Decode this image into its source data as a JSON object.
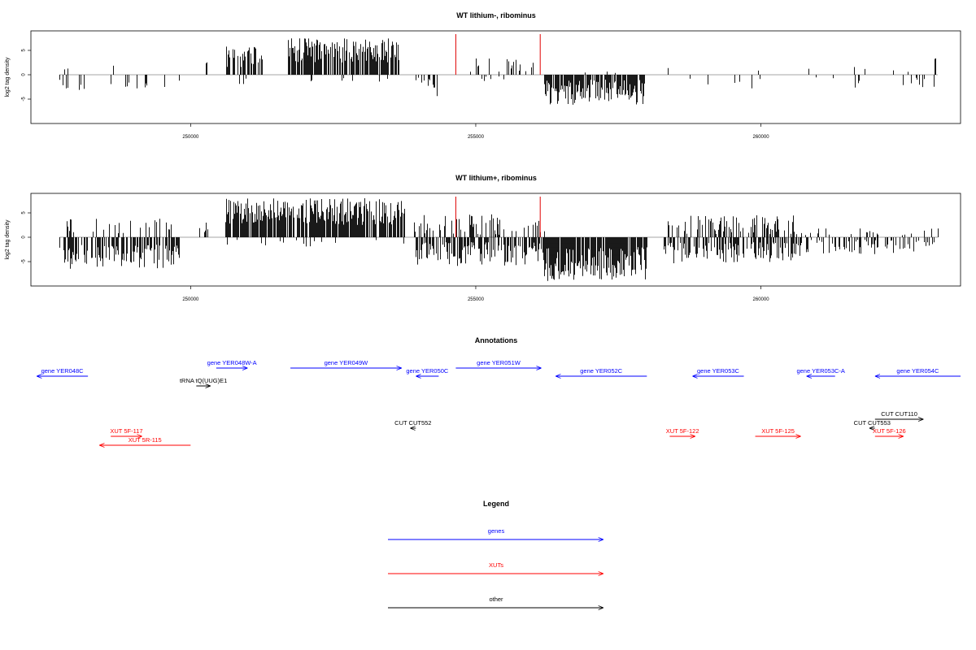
{
  "chart_data": [
    {
      "type": "bar",
      "title": "WT lithium-, ribominus",
      "xlabel": "",
      "ylabel": "log2 tag density",
      "xlim": [
        247200,
        263500
      ],
      "ylim": [
        -10,
        9
      ],
      "x_ticks": [
        250000,
        255000,
        260000
      ],
      "x_tick_labels": [
        "250000",
        "255000",
        "260000"
      ],
      "y_ticks": [
        -5,
        0,
        5
      ],
      "y_tick_labels": [
        "-5",
        "0",
        "5"
      ],
      "markers": {
        "color": "#e00000",
        "x": [
          254650,
          256130
        ]
      },
      "segments": [
        {
          "x_start": 247700,
          "x_end": 249800,
          "sign": -1,
          "min": 1.0,
          "max": 3.5,
          "density": 0.12
        },
        {
          "x_start": 247700,
          "x_end": 249800,
          "sign": 1,
          "min": 0.8,
          "max": 2.4,
          "density": 0.05
        },
        {
          "x_start": 250250,
          "x_end": 250300,
          "sign": 1,
          "min": 2.0,
          "max": 3.0,
          "density": 0.6
        },
        {
          "x_start": 250620,
          "x_end": 251250,
          "sign": 1,
          "min": 1.5,
          "max": 5.8,
          "density": 0.55
        },
        {
          "x_start": 250620,
          "x_end": 251250,
          "sign": -1,
          "min": 0.5,
          "max": 2.0,
          "density": 0.06
        },
        {
          "x_start": 251700,
          "x_end": 253650,
          "sign": 1,
          "min": 2.5,
          "max": 7.5,
          "density": 0.8
        },
        {
          "x_start": 251700,
          "x_end": 253650,
          "sign": -1,
          "min": 0.5,
          "max": 1.8,
          "density": 0.05
        },
        {
          "x_start": 253950,
          "x_end": 254350,
          "sign": -1,
          "min": 0.5,
          "max": 4.5,
          "density": 0.35
        },
        {
          "x_start": 254700,
          "x_end": 256000,
          "sign": 1,
          "min": 0.5,
          "max": 3.5,
          "density": 0.18
        },
        {
          "x_start": 254700,
          "x_end": 256000,
          "sign": -1,
          "min": 0.3,
          "max": 1.5,
          "density": 0.05
        },
        {
          "x_start": 256200,
          "x_end": 257950,
          "sign": -1,
          "min": 1.0,
          "max": 6.2,
          "density": 0.8
        },
        {
          "x_start": 256200,
          "x_end": 257950,
          "sign": 1,
          "min": 0.3,
          "max": 1.0,
          "density": 0.04
        },
        {
          "x_start": 258300,
          "x_end": 263100,
          "sign": -1,
          "min": 0.5,
          "max": 2.8,
          "density": 0.06
        },
        {
          "x_start": 258300,
          "x_end": 263100,
          "sign": 1,
          "min": 0.5,
          "max": 2.0,
          "density": 0.03
        },
        {
          "x_start": 263050,
          "x_end": 263060,
          "sign": 1,
          "min": 3.2,
          "max": 3.4,
          "density": 1.0
        }
      ]
    },
    {
      "type": "bar",
      "title": "WT lithium+, ribominus",
      "xlabel": "",
      "ylabel": "log2 tag density",
      "xlim": [
        247200,
        263500
      ],
      "ylim": [
        -10,
        9
      ],
      "x_ticks": [
        250000,
        255000,
        260000
      ],
      "x_tick_labels": [
        "250000",
        "255000",
        "260000"
      ],
      "y_ticks": [
        -5,
        0,
        5
      ],
      "y_tick_labels": [
        "-5",
        "0",
        "5"
      ],
      "markers": {
        "color": "#e00000",
        "x": [
          254650,
          256130
        ]
      },
      "segments": [
        {
          "x_start": 247700,
          "x_end": 249800,
          "sign": -1,
          "min": 1.5,
          "max": 6.5,
          "density": 0.6
        },
        {
          "x_start": 247700,
          "x_end": 249800,
          "sign": 1,
          "min": 0.8,
          "max": 4.0,
          "density": 0.2
        },
        {
          "x_start": 250150,
          "x_end": 250300,
          "sign": 1,
          "min": 0.8,
          "max": 3.2,
          "density": 0.4
        },
        {
          "x_start": 250600,
          "x_end": 253750,
          "sign": 1,
          "min": 2.5,
          "max": 8.0,
          "density": 0.85
        },
        {
          "x_start": 250600,
          "x_end": 253750,
          "sign": -1,
          "min": 0.5,
          "max": 2.0,
          "density": 0.08
        },
        {
          "x_start": 253900,
          "x_end": 256200,
          "sign": -1,
          "min": 1.0,
          "max": 6.0,
          "density": 0.65
        },
        {
          "x_start": 253900,
          "x_end": 256200,
          "sign": 1,
          "min": 0.5,
          "max": 4.8,
          "density": 0.3
        },
        {
          "x_start": 256200,
          "x_end": 258000,
          "sign": -1,
          "min": 2.0,
          "max": 9.0,
          "density": 0.9
        },
        {
          "x_start": 258300,
          "x_end": 260700,
          "sign": -1,
          "min": 1.0,
          "max": 5.5,
          "density": 0.55
        },
        {
          "x_start": 258300,
          "x_end": 260700,
          "sign": 1,
          "min": 0.5,
          "max": 4.5,
          "density": 0.4
        },
        {
          "x_start": 260700,
          "x_end": 263100,
          "sign": -1,
          "min": 0.5,
          "max": 3.5,
          "density": 0.35
        },
        {
          "x_start": 260700,
          "x_end": 263100,
          "sign": 1,
          "min": 0.4,
          "max": 1.8,
          "density": 0.12
        }
      ]
    }
  ],
  "annotations": {
    "title": "Annotations",
    "features": [
      {
        "label": "gene YER048C",
        "class": "gene",
        "x_start": 247300,
        "x_end": 248200,
        "strand": "-",
        "row": 1
      },
      {
        "label": "gene YER048W-A",
        "class": "gene",
        "x_start": 250450,
        "x_end": 251000,
        "strand": "+",
        "row": 0
      },
      {
        "label": "gene YER049W",
        "class": "gene",
        "x_start": 251750,
        "x_end": 253700,
        "strand": "+",
        "row": 0
      },
      {
        "label": "gene YER050C",
        "class": "gene",
        "x_start": 253950,
        "x_end": 254350,
        "strand": "-",
        "row": 1
      },
      {
        "label": "gene YER051W",
        "class": "gene",
        "x_start": 254650,
        "x_end": 256150,
        "strand": "+",
        "row": 0
      },
      {
        "label": "gene YER052C",
        "class": "gene",
        "x_start": 256400,
        "x_end": 258000,
        "strand": "-",
        "row": 1
      },
      {
        "label": "gene YER053C",
        "class": "gene",
        "x_start": 258800,
        "x_end": 259700,
        "strand": "-",
        "row": 1
      },
      {
        "label": "gene YER053C-A",
        "class": "gene",
        "x_start": 260800,
        "x_end": 261300,
        "strand": "-",
        "row": 1
      },
      {
        "label": "gene YER054C",
        "class": "gene",
        "x_start": 262000,
        "x_end": 263500,
        "strand": "-",
        "row": 1
      },
      {
        "label": "tRNA tQ(UUG)E1",
        "class": "other",
        "x_start": 250100,
        "x_end": 250350,
        "strand": "+",
        "row": 2
      },
      {
        "label": "CUT CUT552",
        "class": "other",
        "x_start": 253850,
        "x_end": 253950,
        "strand": "-",
        "row": 3
      },
      {
        "label": "CUT CUT110",
        "class": "other",
        "x_start": 262000,
        "x_end": 262850,
        "strand": "+",
        "row": 4
      },
      {
        "label": "CUT CUT553",
        "class": "other",
        "x_start": 261900,
        "x_end": 262000,
        "strand": "-",
        "row": 5
      },
      {
        "label": "XUT 5F-117",
        "class": "xut",
        "x_start": 248600,
        "x_end": 249150,
        "strand": "+",
        "row": 6
      },
      {
        "label": "XUT 5R-115",
        "class": "xut",
        "x_start": 248400,
        "x_end": 250000,
        "strand": "-",
        "row": 7
      },
      {
        "label": "XUT 5F-122",
        "class": "xut",
        "x_start": 258400,
        "x_end": 258850,
        "strand": "+",
        "row": 6
      },
      {
        "label": "XUT 5F-125",
        "class": "xut",
        "x_start": 259900,
        "x_end": 260700,
        "strand": "+",
        "row": 6
      },
      {
        "label": "XUT 5F-126",
        "class": "xut",
        "x_start": 262000,
        "x_end": 262500,
        "strand": "+",
        "row": 6
      }
    ]
  },
  "legend": {
    "title": "Legend",
    "items": [
      {
        "label": "genes",
        "color": "#0000ff"
      },
      {
        "label": "XUTs",
        "color": "#ff0000"
      },
      {
        "label": "other",
        "color": "#000000"
      }
    ]
  },
  "colors": {
    "gene": "#0000ff",
    "xut": "#ff0000",
    "other": "#000000",
    "marker": "#e00000",
    "axis": "#000000"
  }
}
